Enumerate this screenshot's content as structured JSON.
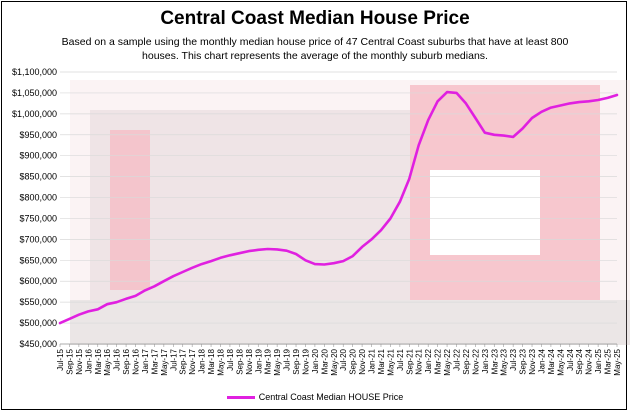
{
  "colors": {
    "line": "#e020e0",
    "grid": "#d9d9d9"
  },
  "chart_data": {
    "type": "line",
    "title": "Central Coast Median House Price",
    "subtitle": "Based on a sample using the monthly median house price of 47 Central Coast suburbs that have at least 800 houses. This chart represents the average of the monthly suburb medians.",
    "ylim": [
      450000,
      1100000
    ],
    "y_ticks": [
      {
        "value": 450000,
        "label": "$450,000"
      },
      {
        "value": 500000,
        "label": "$500,000"
      },
      {
        "value": 550000,
        "label": "$550,000"
      },
      {
        "value": 600000,
        "label": "$600,000"
      },
      {
        "value": 650000,
        "label": "$650,000"
      },
      {
        "value": 700000,
        "label": "$700,000"
      },
      {
        "value": 750000,
        "label": "$750,000"
      },
      {
        "value": 800000,
        "label": "$800,000"
      },
      {
        "value": 850000,
        "label": "$850,000"
      },
      {
        "value": 900000,
        "label": "$900,000"
      },
      {
        "value": 950000,
        "label": "$950,000"
      },
      {
        "value": 1000000,
        "label": "$1,000,000"
      },
      {
        "value": 1050000,
        "label": "$1,050,000"
      },
      {
        "value": 1100000,
        "label": "$1,100,000"
      }
    ],
    "x_tick_labels": [
      "Jul-15",
      "Sep-15",
      "Nov-15",
      "Jan-16",
      "Mar-16",
      "May-16",
      "Jul-16",
      "Sep-16",
      "Nov-16",
      "Jan-17",
      "Mar-17",
      "May-17",
      "Jul-17",
      "Sep-17",
      "Nov-17",
      "Jan-18",
      "Mar-18",
      "May-18",
      "Jul-18",
      "Sep-18",
      "Nov-18",
      "Jan-19",
      "Mar-19",
      "May-19",
      "Jul-19",
      "Sep-19",
      "Nov-19",
      "Jan-20",
      "Mar-20",
      "May-20",
      "Jul-20",
      "Sep-20",
      "Nov-20",
      "Jan-21",
      "Mar-21",
      "May-21",
      "Jul-21",
      "Sep-21",
      "Nov-21",
      "Jan-22",
      "Mar-22",
      "May-22",
      "Jul-22",
      "Sep-22",
      "Nov-22",
      "Jan-23",
      "Mar-23",
      "May-23",
      "Jul-23",
      "Sep-23",
      "Nov-23",
      "Jan-24",
      "Mar-24",
      "May-24",
      "Jul-24",
      "Sep-24",
      "Nov-24",
      "Jan-25",
      "Mar-25",
      "May-25"
    ],
    "series": [
      {
        "name": "Central Coast Median HOUSE Price",
        "values": [
          500000,
          510000,
          520000,
          528000,
          533000,
          545000,
          550000,
          558000,
          565000,
          578000,
          588000,
          600000,
          612000,
          622000,
          632000,
          641000,
          648000,
          656000,
          662000,
          667000,
          672000,
          675000,
          677000,
          676000,
          673000,
          665000,
          650000,
          641000,
          640000,
          643000,
          648000,
          660000,
          682000,
          700000,
          722000,
          750000,
          790000,
          845000,
          925000,
          985000,
          1030000,
          1052000,
          1050000,
          1025000,
          990000,
          955000,
          950000,
          948000,
          945000,
          965000,
          990000,
          1005000,
          1015000,
          1020000,
          1025000,
          1028000,
          1030000,
          1033000,
          1038000,
          1045000
        ]
      }
    ]
  }
}
